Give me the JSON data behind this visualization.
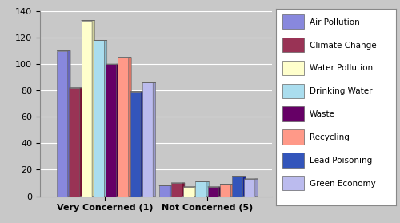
{
  "categories": [
    "Very Concerned (1)",
    "Not Concerned (5)"
  ],
  "series": [
    {
      "label": "Air Pollution",
      "face_color": "#8888DD",
      "side_color": "#6666BB",
      "top_color": "#AAAAEE",
      "values": [
        110,
        8
      ]
    },
    {
      "label": "Climate Change",
      "face_color": "#993355",
      "side_color": "#771133",
      "top_color": "#BB5577",
      "values": [
        82,
        10
      ]
    },
    {
      "label": "Water Pollution",
      "face_color": "#FFFFCC",
      "side_color": "#CCCC99",
      "top_color": "#FFFFEE",
      "values": [
        133,
        7
      ]
    },
    {
      "label": "Drinking Water",
      "face_color": "#AADDEE",
      "side_color": "#88BBCC",
      "top_color": "#CCEEEE",
      "values": [
        118,
        11
      ]
    },
    {
      "label": "Waste",
      "face_color": "#660066",
      "side_color": "#440044",
      "top_color": "#880088",
      "values": [
        100,
        7
      ]
    },
    {
      "label": "Recycling",
      "face_color": "#FF9988",
      "side_color": "#DD7766",
      "top_color": "#FFBBAA",
      "values": [
        105,
        9
      ]
    },
    {
      "label": "Lead Poisoning",
      "face_color": "#3355BB",
      "side_color": "#112299",
      "top_color": "#5577DD",
      "values": [
        79,
        15
      ]
    },
    {
      "label": "Green Economy",
      "face_color": "#BBBBEE",
      "side_color": "#9999CC",
      "top_color": "#DDDDFF",
      "values": [
        86,
        13
      ]
    }
  ],
  "legend_colors": [
    "#8888DD",
    "#993355",
    "#FFFFCC",
    "#AADDEE",
    "#660066",
    "#FF9988",
    "#3355BB",
    "#BBBBEE"
  ],
  "ylim": [
    0,
    140
  ],
  "yticks": [
    0,
    20,
    40,
    60,
    80,
    100,
    120,
    140
  ],
  "plot_bg_color": "#C8C8C8",
  "fig_bg_color": "#C8C8C8",
  "grid_color": "#FFFFFF",
  "legend_fontsize": 7.5,
  "tick_fontsize": 8,
  "axis_label_fontsize": 8
}
